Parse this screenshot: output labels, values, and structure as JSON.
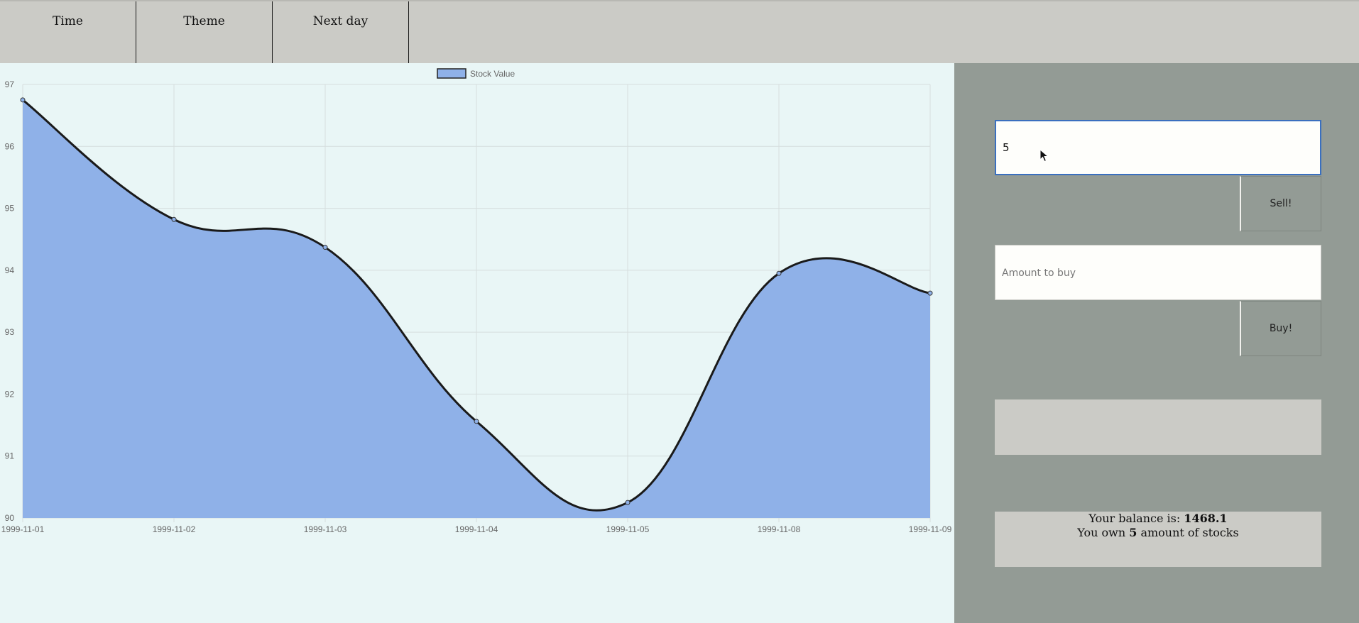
{
  "nav": {
    "items": [
      {
        "label": "Time"
      },
      {
        "label": "Theme"
      },
      {
        "label": "Next day"
      }
    ]
  },
  "sell": {
    "input_value": "5",
    "button_label": "Sell!"
  },
  "buy": {
    "input_placeholder": "Amount to buy",
    "button_label": "Buy!"
  },
  "status": {
    "message": "",
    "balance_prefix": "Your balance is: ",
    "balance_value": "1468.1",
    "own_prefix": "You own ",
    "own_value": "5",
    "own_suffix": " amount of stocks"
  },
  "colors": {
    "fill": "#8fb1e8",
    "line": "#1a1a1a",
    "grid": "#d6dede"
  },
  "chart_data": {
    "type": "area",
    "legend": [
      "Stock Value"
    ],
    "legend_position": "top",
    "categories": [
      "1999-11-01",
      "1999-11-02",
      "1999-11-03",
      "1999-11-04",
      "1999-11-05",
      "1999-11-08",
      "1999-11-09"
    ],
    "series": [
      {
        "name": "Stock Value",
        "values": [
          96.75,
          94.82,
          94.37,
          91.56,
          90.25,
          93.95,
          93.63
        ]
      }
    ],
    "ylim": [
      90,
      97
    ],
    "yticks": [
      90,
      91,
      92,
      93,
      94,
      95,
      96,
      97
    ],
    "grid": true
  }
}
